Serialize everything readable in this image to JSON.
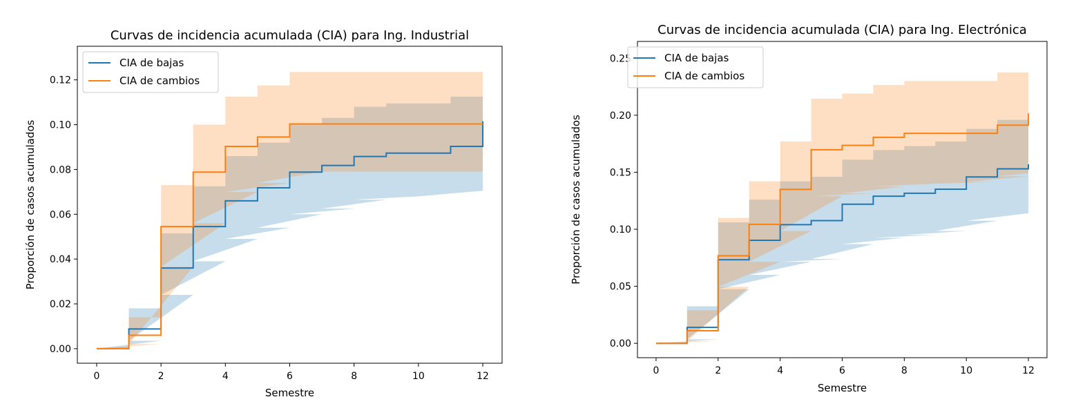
{
  "chart_data": [
    {
      "type": "line",
      "step": "post",
      "title": "Curvas de incidencia acumulada (CIA) para Ing. Industrial",
      "xlabel": "Semestre",
      "ylabel": "Proporción de casos acumulados",
      "xlim": [
        -0.6,
        12.6
      ],
      "ylim": [
        -0.0065,
        0.135
      ],
      "xticks": [
        0,
        2,
        4,
        6,
        8,
        10,
        12
      ],
      "xtick_labels": [
        "0",
        "2",
        "4",
        "6",
        "8",
        "10",
        "12"
      ],
      "yticks": [
        0.0,
        0.02,
        0.04,
        0.06,
        0.08,
        0.1,
        0.12
      ],
      "ytick_labels": [
        "0.00",
        "0.02",
        "0.04",
        "0.06",
        "0.08",
        "0.10",
        "0.12"
      ],
      "grid": false,
      "legend_position": "top-left",
      "x": [
        0,
        1,
        2,
        3,
        4,
        5,
        6,
        7,
        8,
        9,
        10,
        11,
        12
      ],
      "series": [
        {
          "name": "CIA de bajas",
          "color": "#1f77b4",
          "values": [
            0.0,
            0.0088,
            0.036,
            0.0545,
            0.066,
            0.0718,
            0.0788,
            0.0818,
            0.0858,
            0.0873,
            0.0873,
            0.0903,
            0.1015
          ],
          "ci_lower": [
            0.0,
            0.0035,
            0.024,
            0.039,
            0.049,
            0.054,
            0.06,
            0.0625,
            0.0665,
            0.068,
            0.068,
            0.0705,
            0.0705
          ],
          "ci_upper": [
            0.0,
            0.018,
            0.0515,
            0.0725,
            0.086,
            0.092,
            0.1,
            0.103,
            0.108,
            0.1095,
            0.1095,
            0.1125,
            0.129
          ]
        },
        {
          "name": "CIA de cambios",
          "color": "#ff7f0e",
          "values": [
            0.0,
            0.006,
            0.0545,
            0.0788,
            0.0903,
            0.0945,
            0.1003,
            0.1003,
            0.1003,
            0.1003,
            0.1003,
            0.1003,
            0.1003
          ],
          "ci_lower": [
            0.0,
            0.002,
            0.0365,
            0.056,
            0.07,
            0.074,
            0.079,
            0.079,
            0.079,
            0.079,
            0.079,
            0.079,
            0.079
          ],
          "ci_upper": [
            0.0,
            0.014,
            0.073,
            0.1,
            0.1125,
            0.1175,
            0.1235,
            0.1235,
            0.1235,
            0.1235,
            0.1235,
            0.1235,
            0.1235
          ]
        }
      ]
    },
    {
      "type": "line",
      "step": "post",
      "title": "Curvas de incidencia acumulada (CIA) para Ing. Electrónica",
      "xlabel": "Semestre",
      "ylabel": "Proporción de casos acumulados",
      "xlim": [
        -0.6,
        12.6
      ],
      "ylim": [
        -0.0126,
        0.2647
      ],
      "xticks": [
        0,
        2,
        4,
        6,
        8,
        10,
        12
      ],
      "xtick_labels": [
        "0",
        "2",
        "4",
        "6",
        "8",
        "10",
        "12"
      ],
      "yticks": [
        0.0,
        0.05,
        0.1,
        0.15,
        0.2,
        0.25
      ],
      "ytick_labels": [
        "0.00",
        "0.05",
        "0.10",
        "0.15",
        "0.20",
        "0.25"
      ],
      "grid": false,
      "legend_position": "top-left",
      "x": [
        0,
        1,
        2,
        3,
        4,
        5,
        6,
        7,
        8,
        9,
        10,
        11,
        12
      ],
      "series": [
        {
          "name": "CIA de bajas",
          "color": "#1f77b4",
          "values": [
            0.0,
            0.014,
            0.0733,
            0.0903,
            0.104,
            0.1076,
            0.122,
            0.129,
            0.1316,
            0.1351,
            0.1459,
            0.153,
            0.157
          ],
          "ci_lower": [
            0.0,
            0.0035,
            0.0475,
            0.06,
            0.0715,
            0.074,
            0.087,
            0.0925,
            0.095,
            0.0985,
            0.1075,
            0.114,
            0.114
          ],
          "ci_upper": [
            0.0,
            0.0325,
            0.106,
            0.126,
            0.142,
            0.146,
            0.161,
            0.1695,
            0.173,
            0.177,
            0.188,
            0.196,
            0.2
          ]
        },
        {
          "name": "CIA de cambios",
          "color": "#ff7f0e",
          "values": [
            0.0,
            0.011,
            0.0768,
            0.1043,
            0.135,
            0.1697,
            0.1736,
            0.1806,
            0.1841,
            0.1841,
            0.1841,
            0.1913,
            0.2016
          ],
          "ci_lower": [
            0.0,
            0.002,
            0.0495,
            0.0715,
            0.0985,
            0.129,
            0.1315,
            0.1375,
            0.14,
            0.14,
            0.1415,
            0.1465,
            0.149
          ],
          "ci_upper": [
            0.0,
            0.029,
            0.11,
            0.142,
            0.177,
            0.2145,
            0.219,
            0.2265,
            0.23,
            0.23,
            0.23,
            0.2375,
            0.2525
          ]
        }
      ]
    }
  ]
}
